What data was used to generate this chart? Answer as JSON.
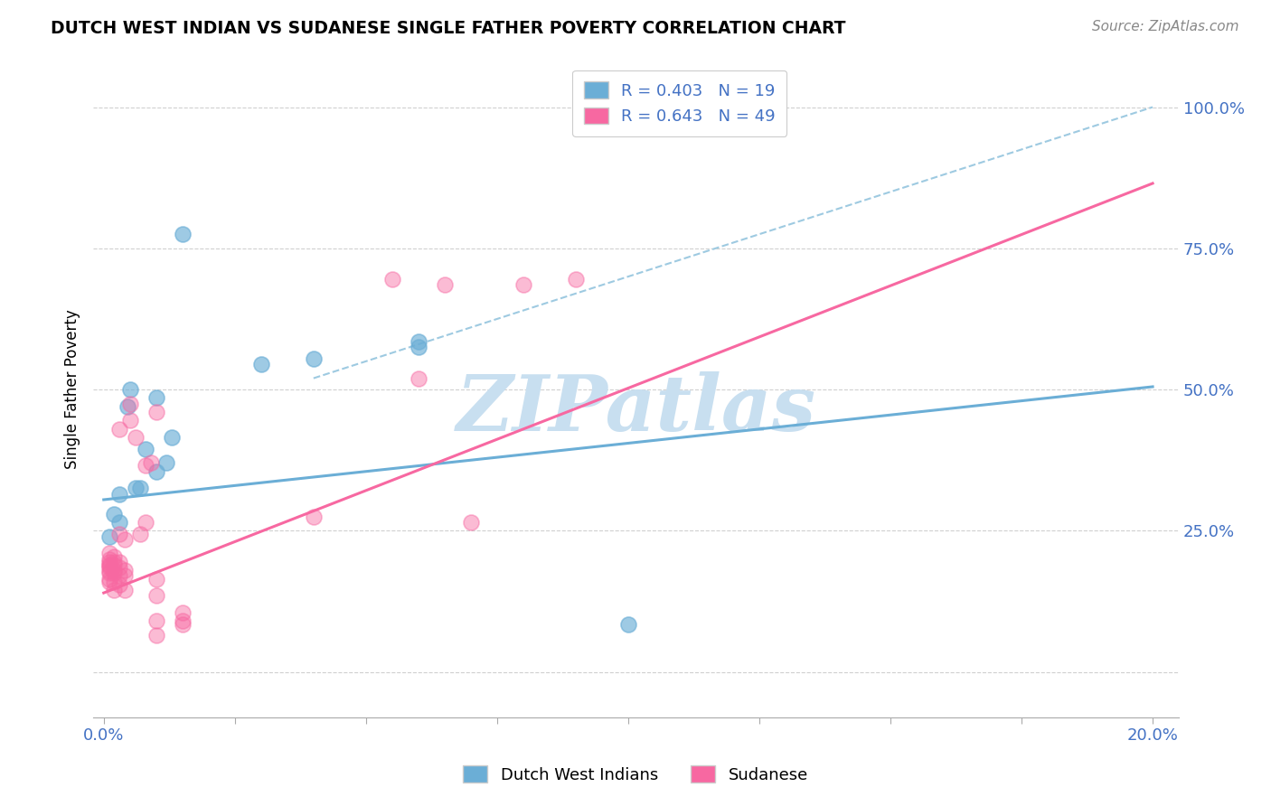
{
  "title": "DUTCH WEST INDIAN VS SUDANESE SINGLE FATHER POVERTY CORRELATION CHART",
  "source": "Source: ZipAtlas.com",
  "ylabel_label": "Single Father Poverty",
  "x_ticks": [
    0.0,
    0.025,
    0.05,
    0.075,
    0.1,
    0.125,
    0.15,
    0.175,
    0.2
  ],
  "x_tick_labels": [
    "0.0%",
    "",
    "",
    "",
    "",
    "",
    "",
    "",
    "20.0%"
  ],
  "y_ticks": [
    0.0,
    0.25,
    0.5,
    0.75,
    1.0
  ],
  "y_tick_labels": [
    "",
    "25.0%",
    "50.0%",
    "75.0%",
    "100.0%"
  ],
  "xlim": [
    -0.002,
    0.205
  ],
  "ylim": [
    -0.08,
    1.08
  ],
  "legend_entries": [
    {
      "label": "R = 0.403   N = 19",
      "color": "#6baed6"
    },
    {
      "label": "R = 0.643   N = 49",
      "color": "#f768a1"
    }
  ],
  "legend_labels": [
    "Dutch West Indians",
    "Sudanese"
  ],
  "blue_color": "#6baed6",
  "pink_color": "#f768a1",
  "dashed_line_color": "#9ecae1",
  "watermark_text": "ZIPatlas",
  "watermark_color": "#c8dff0",
  "axis_tick_color": "#4472c4",
  "grid_color": "#d0d0d0",
  "dutch_west_indians": [
    [
      0.001,
      0.24
    ],
    [
      0.002,
      0.28
    ],
    [
      0.003,
      0.315
    ],
    [
      0.003,
      0.265
    ],
    [
      0.0045,
      0.47
    ],
    [
      0.005,
      0.5
    ],
    [
      0.006,
      0.325
    ],
    [
      0.007,
      0.325
    ],
    [
      0.008,
      0.395
    ],
    [
      0.01,
      0.485
    ],
    [
      0.01,
      0.355
    ],
    [
      0.012,
      0.37
    ],
    [
      0.013,
      0.415
    ],
    [
      0.015,
      0.775
    ],
    [
      0.03,
      0.545
    ],
    [
      0.04,
      0.555
    ],
    [
      0.06,
      0.585
    ],
    [
      0.06,
      0.575
    ],
    [
      0.1,
      0.085
    ]
  ],
  "sudanese": [
    [
      0.001,
      0.16
    ],
    [
      0.001,
      0.165
    ],
    [
      0.001,
      0.175
    ],
    [
      0.001,
      0.178
    ],
    [
      0.001,
      0.185
    ],
    [
      0.001,
      0.188
    ],
    [
      0.001,
      0.19
    ],
    [
      0.001,
      0.195
    ],
    [
      0.001,
      0.2
    ],
    [
      0.001,
      0.21
    ],
    [
      0.002,
      0.145
    ],
    [
      0.002,
      0.16
    ],
    [
      0.002,
      0.175
    ],
    [
      0.002,
      0.18
    ],
    [
      0.002,
      0.19
    ],
    [
      0.002,
      0.195
    ],
    [
      0.002,
      0.205
    ],
    [
      0.003,
      0.155
    ],
    [
      0.003,
      0.17
    ],
    [
      0.003,
      0.185
    ],
    [
      0.003,
      0.195
    ],
    [
      0.003,
      0.245
    ],
    [
      0.003,
      0.43
    ],
    [
      0.004,
      0.145
    ],
    [
      0.004,
      0.17
    ],
    [
      0.004,
      0.18
    ],
    [
      0.004,
      0.235
    ],
    [
      0.005,
      0.445
    ],
    [
      0.005,
      0.475
    ],
    [
      0.006,
      0.415
    ],
    [
      0.007,
      0.245
    ],
    [
      0.008,
      0.265
    ],
    [
      0.008,
      0.365
    ],
    [
      0.009,
      0.37
    ],
    [
      0.01,
      0.065
    ],
    [
      0.01,
      0.09
    ],
    [
      0.01,
      0.135
    ],
    [
      0.01,
      0.165
    ],
    [
      0.01,
      0.46
    ],
    [
      0.015,
      0.085
    ],
    [
      0.015,
      0.09
    ],
    [
      0.015,
      0.105
    ],
    [
      0.04,
      0.275
    ],
    [
      0.055,
      0.695
    ],
    [
      0.06,
      0.52
    ],
    [
      0.065,
      0.685
    ],
    [
      0.07,
      0.265
    ],
    [
      0.08,
      0.685
    ],
    [
      0.09,
      0.695
    ]
  ],
  "blue_line": {
    "x0": 0.0,
    "y0": 0.305,
    "x1": 0.2,
    "y1": 0.505
  },
  "pink_line": {
    "x0": 0.0,
    "y0": 0.14,
    "x1": 0.2,
    "y1": 0.865
  },
  "dashed_line": {
    "x0": 0.04,
    "y0": 0.52,
    "x1": 0.2,
    "y1": 1.0
  }
}
